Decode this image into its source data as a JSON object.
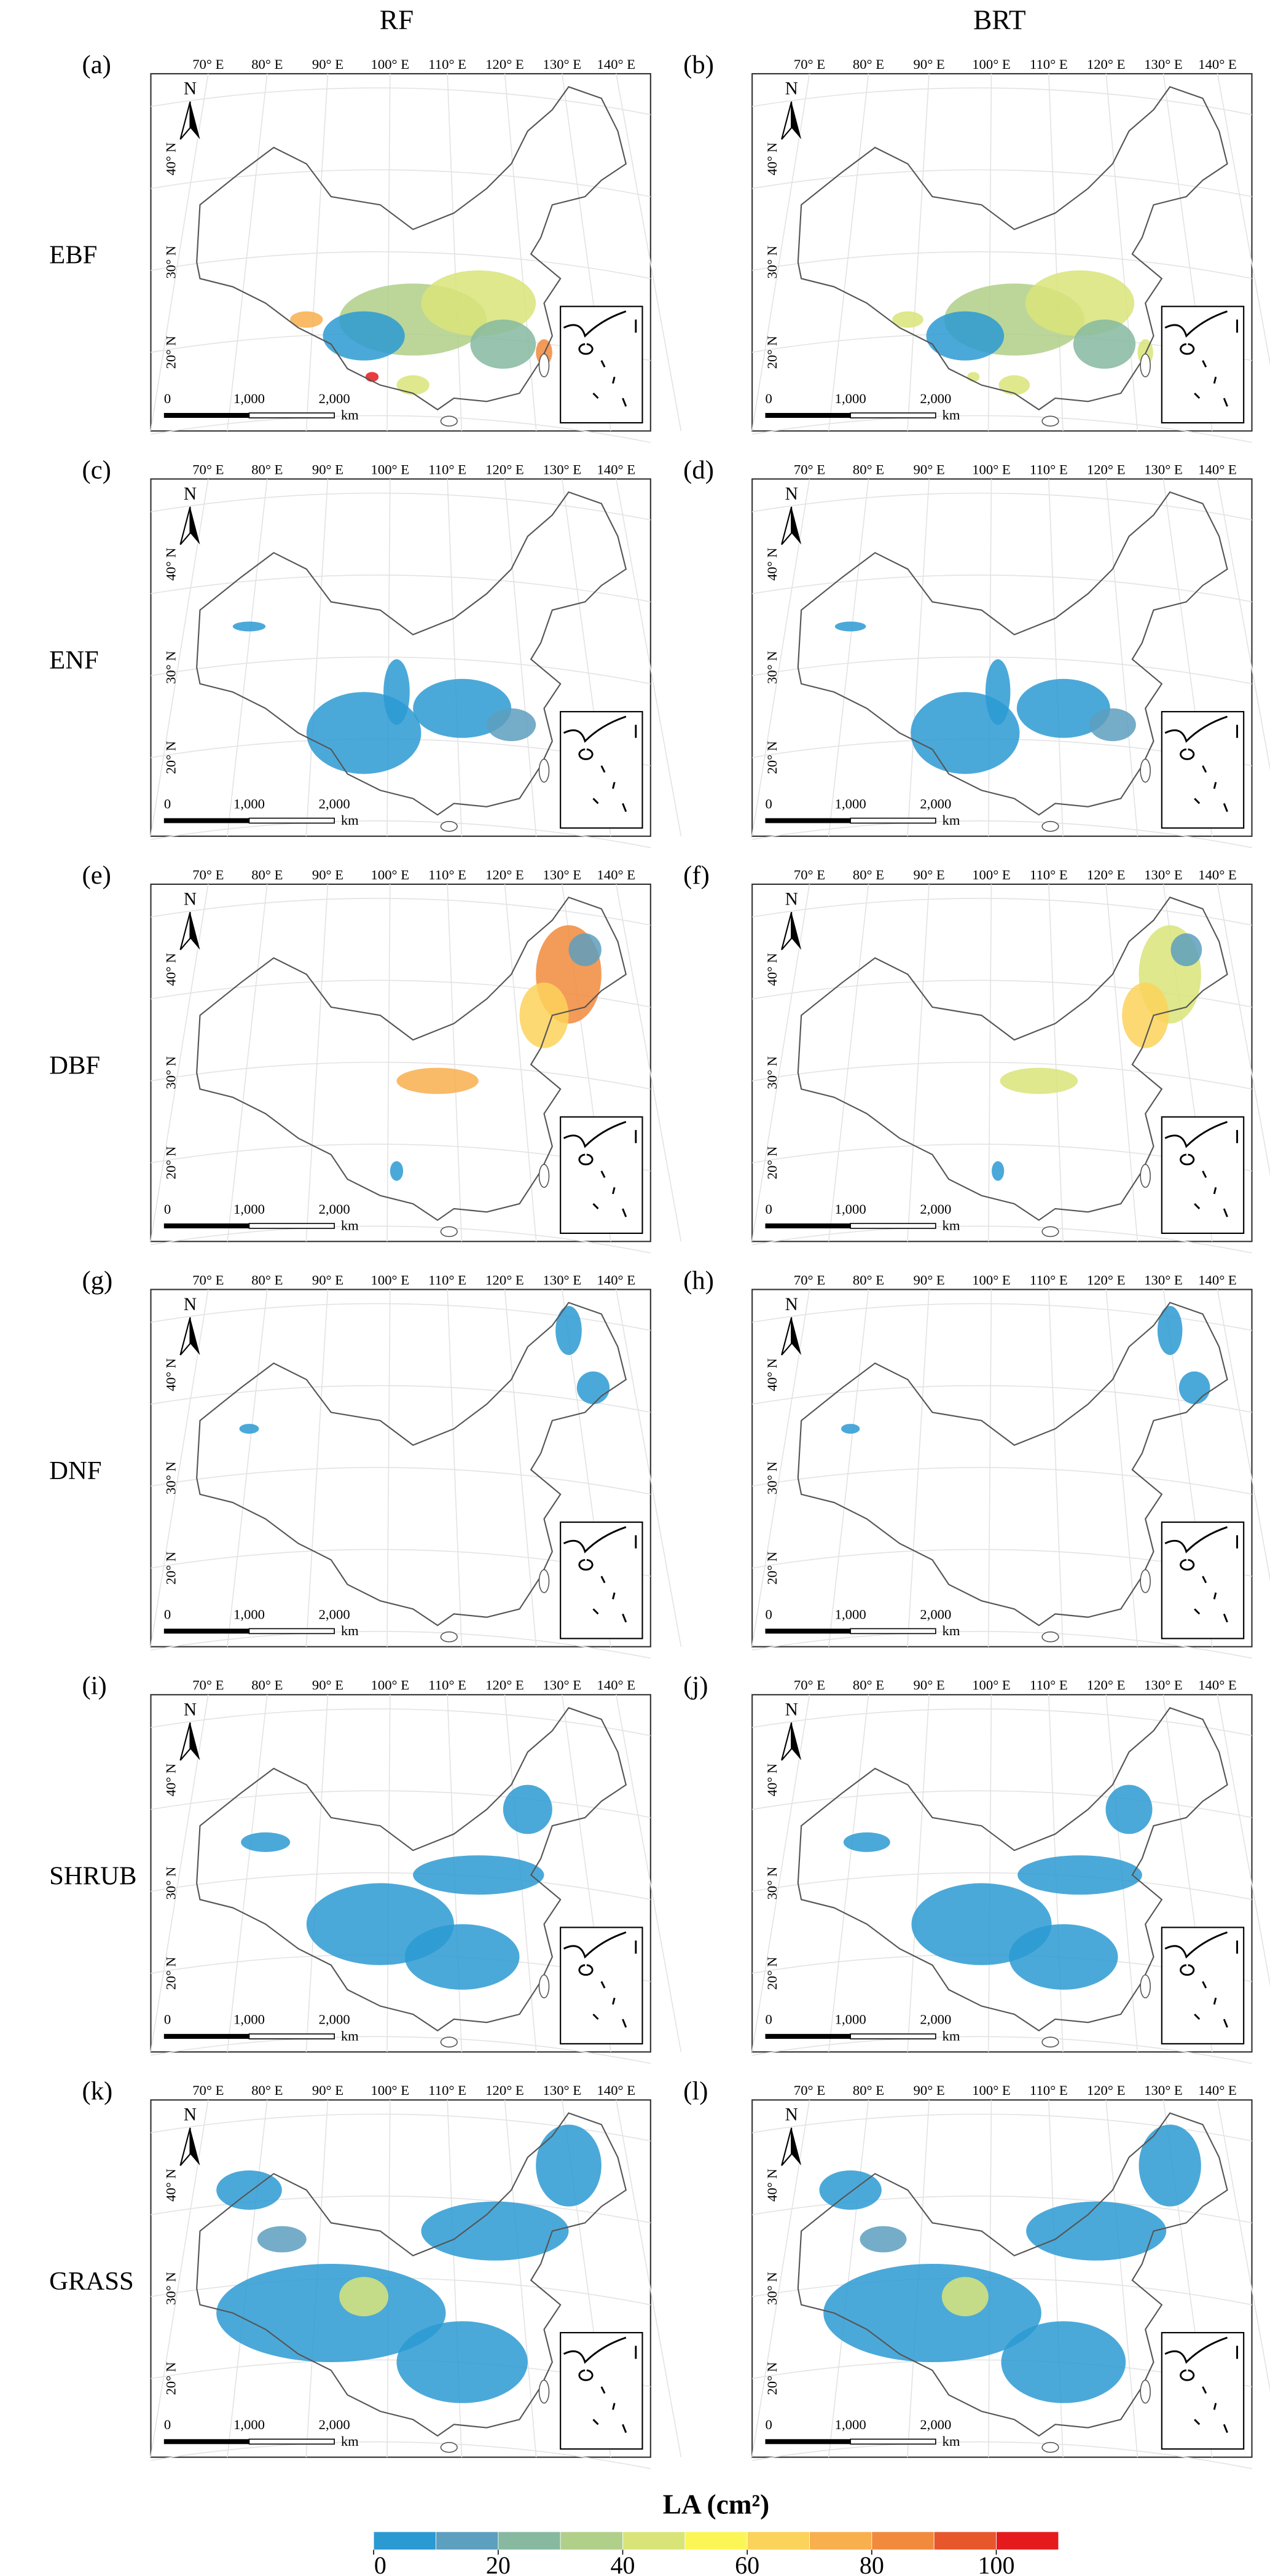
{
  "columns": [
    "RF",
    "BRT"
  ],
  "rows": [
    {
      "label": "EBF",
      "panels": [
        "(a)",
        "(b)"
      ]
    },
    {
      "label": "ENF",
      "panels": [
        "(c)",
        "(d)"
      ]
    },
    {
      "label": "DBF",
      "panels": [
        "(e)",
        "(f)"
      ]
    },
    {
      "label": "DNF",
      "panels": [
        "(g)",
        "(h)"
      ]
    },
    {
      "label": "SHRUB",
      "panels": [
        "(i)",
        "(j)"
      ]
    },
    {
      "label": "GRASS",
      "panels": [
        "(k)",
        "(l)"
      ]
    }
  ],
  "map": {
    "lon_labels": [
      "70° E",
      "80° E",
      "90° E",
      "100° E",
      "110° E",
      "120° E",
      "130° E",
      "140° E"
    ],
    "lat_labels": [
      "40° N",
      "30° N",
      "20° N"
    ],
    "north": "N",
    "scale_labels": [
      "0",
      "1,000",
      "2,000"
    ],
    "scale_unit": "km"
  },
  "colorbar": {
    "title": "LA (cm²)",
    "lim": [
      0,
      110
    ],
    "ticks": [
      0,
      20,
      40,
      60,
      80,
      100
    ],
    "colors": [
      "#2b9ad2",
      "#5d9fbe",
      "#86b9a0",
      "#b0cf88",
      "#d9e478",
      "#fbf656",
      "#fbd25a",
      "#f8af4d",
      "#f18a3c",
      "#e8562c",
      "#e41a1c"
    ]
  }
}
